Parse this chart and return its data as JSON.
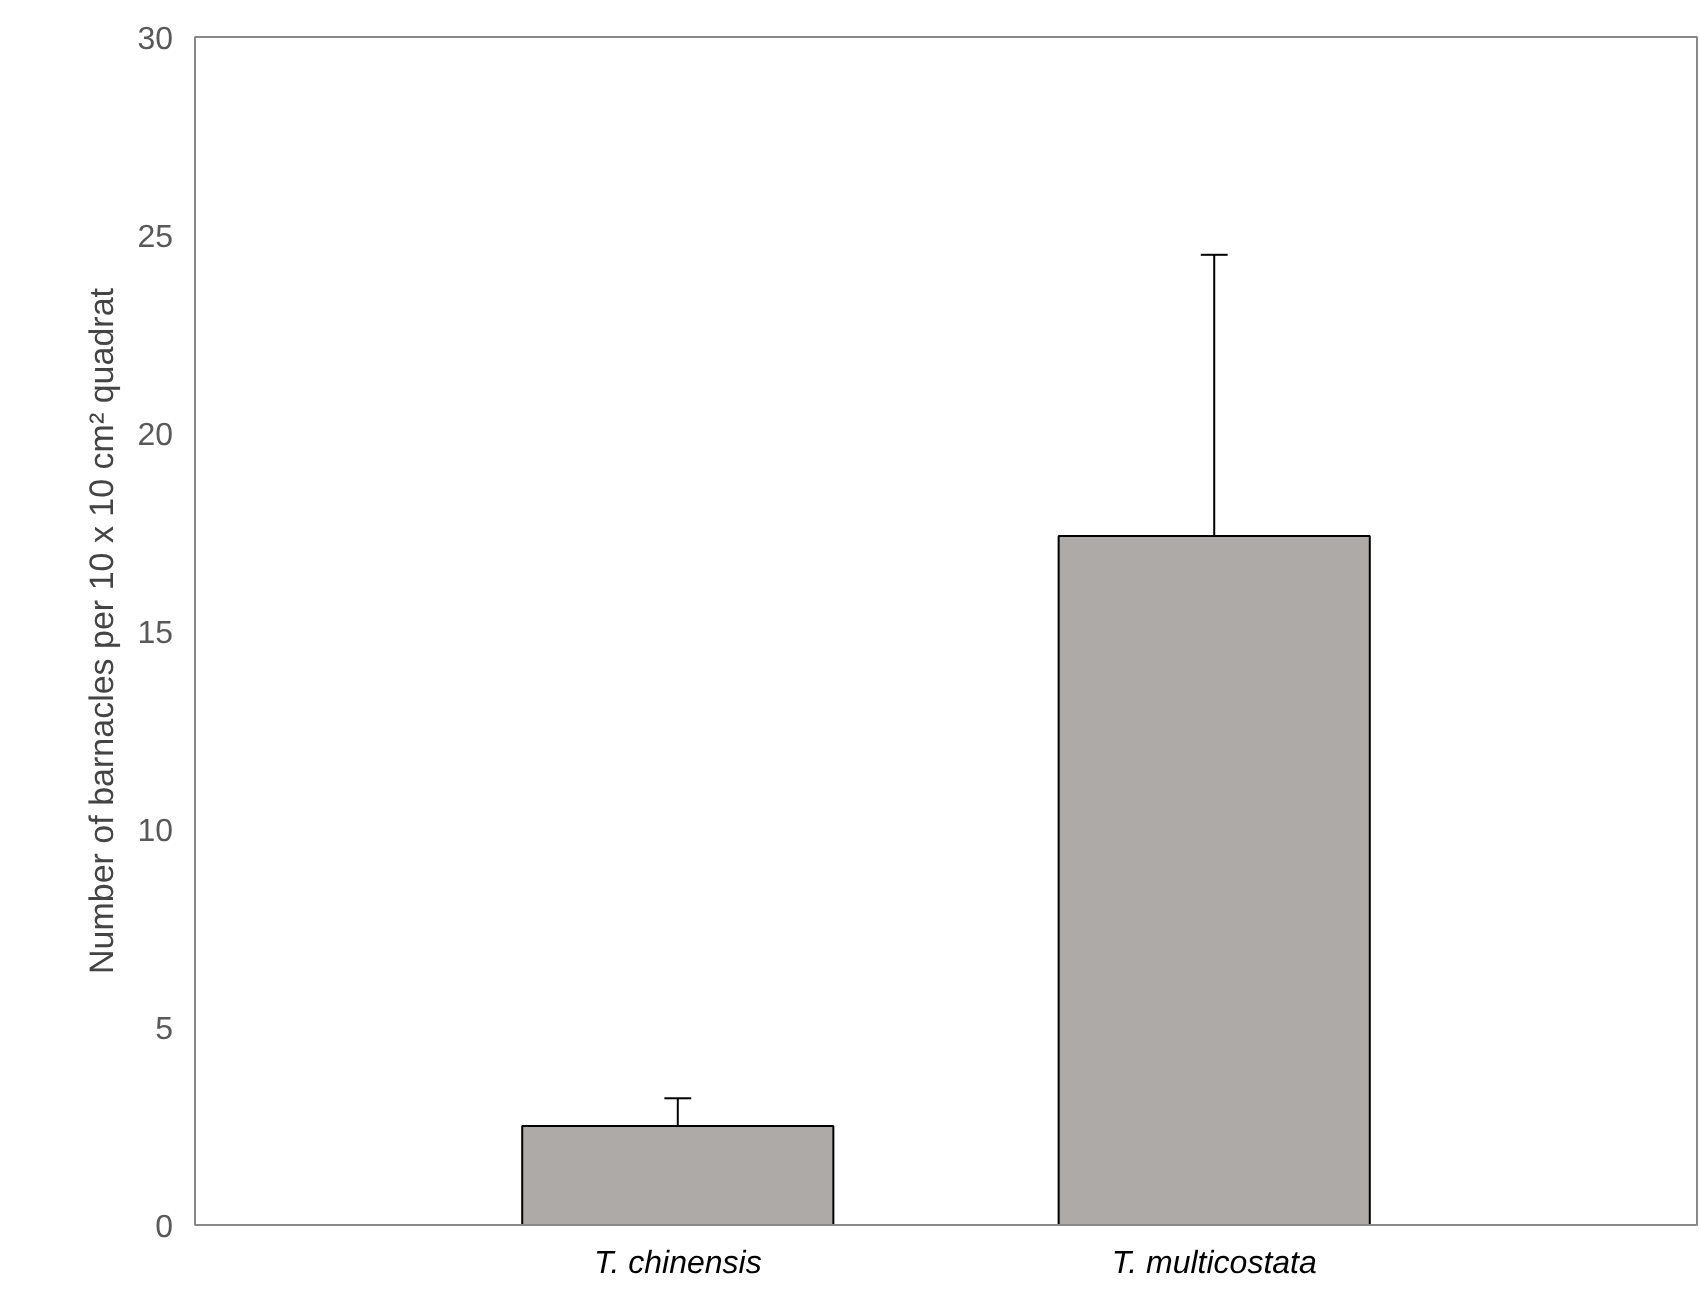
{
  "chart_data": {
    "type": "bar",
    "ylabel": "Number of barnacles per 10 x 10 cm² quadrat",
    "categories": [
      "T. chinensis",
      "T. multicostata"
    ],
    "values": [
      2.5,
      17.4
    ],
    "errors": [
      [
        2.5,
        3.2
      ],
      [
        17.4,
        24.5
      ]
    ],
    "color": "#aeaaa7",
    "ylim": [
      0,
      30
    ],
    "yticks": [
      0,
      5,
      10,
      15,
      20,
      25,
      30
    ],
    "grid": false
  }
}
